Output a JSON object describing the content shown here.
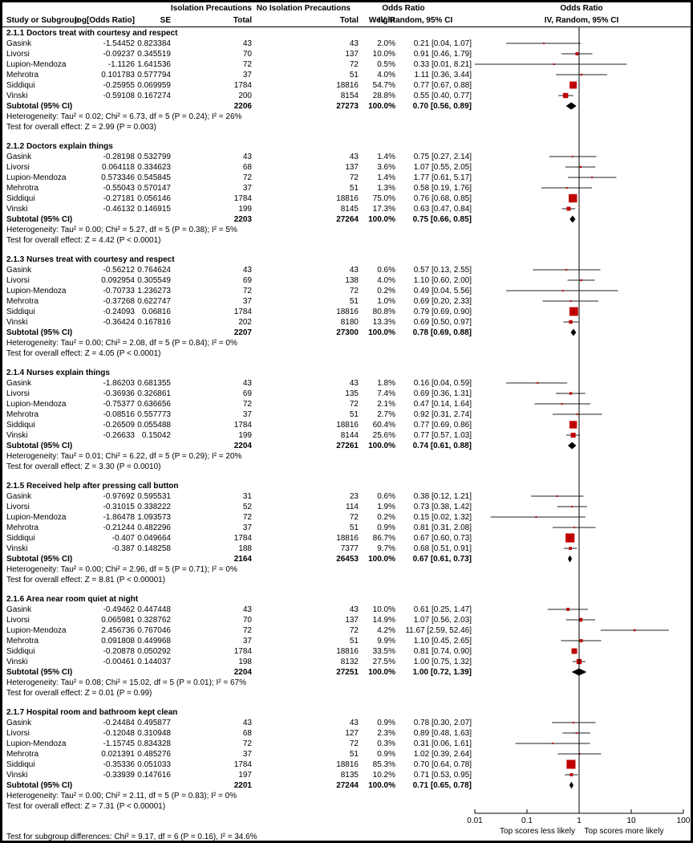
{
  "header": {
    "group_iso": "Isolation Precautions",
    "group_noiso": "No Isolation Precautions",
    "or_col_title": "Odds Ratio",
    "plot_col_title": "Odds Ratio",
    "study": "Study or Subgroup",
    "log_or": "log[Odds Ratio]",
    "se": "SE",
    "total_iso": "Total",
    "total_noiso": "Total",
    "weight": "Weight",
    "method_col": "IV, Random, 95% CI",
    "method_plot": "IV, Random, 95% CI"
  },
  "footer": "Test for subgroup differences: Chi² = 9.17, df = 6 (P = 0.16), I² = 34.6%",
  "colors": {
    "marker_red": "#c00000",
    "diamond_black": "#000000",
    "ci_line": "#4d4d4d",
    "axis_black": "#000000"
  },
  "chart_data": {
    "type": "forest_plot",
    "x_scale": "log10",
    "x_ticks": [
      "0.01",
      "0.1",
      "1",
      "10",
      "100"
    ],
    "x_tick_values": [
      0.01,
      0.1,
      1,
      10,
      100
    ],
    "axis_left_label": "Top scores less likely",
    "axis_right_label": "Top scores more likely",
    "subtotal_label": "Subtotal (95% CI)",
    "sections": [
      {
        "title": "2.1.1 Doctors treat with courtesy and respect",
        "studies": [
          {
            "name": "Gasink",
            "log_or": "-1.54452",
            "se": "0.823384",
            "iso": "43",
            "noiso": "43",
            "weight": "2.0%",
            "w": 2.0,
            "or_text": "0.21 [0.04, 1.07]",
            "or": 0.21,
            "lo": 0.04,
            "hi": 1.07
          },
          {
            "name": "Livorsi",
            "log_or": "-0.09237",
            "se": "0.345519",
            "iso": "70",
            "noiso": "137",
            "weight": "10.0%",
            "w": 10.0,
            "or_text": "0.91 [0.46, 1.79]",
            "or": 0.91,
            "lo": 0.46,
            "hi": 1.79
          },
          {
            "name": "Lupion-Mendoza",
            "log_or": "-1.1126",
            "se": "1.641536",
            "iso": "72",
            "noiso": "72",
            "weight": "0.5%",
            "w": 0.5,
            "or_text": "0.33 [0.01, 8.21]",
            "or": 0.33,
            "lo": 0.01,
            "hi": 8.21
          },
          {
            "name": "Mehrotra",
            "log_or": "0.101783",
            "se": "0.577794",
            "iso": "37",
            "noiso": "51",
            "weight": "4.0%",
            "w": 4.0,
            "or_text": "1.11 [0.36, 3.44]",
            "or": 1.11,
            "lo": 0.36,
            "hi": 3.44
          },
          {
            "name": "Siddiqui",
            "log_or": "-0.25955",
            "se": "0.069959",
            "iso": "1784",
            "noiso": "18816",
            "weight": "54.7%",
            "w": 54.7,
            "or_text": "0.77 [0.67, 0.88]",
            "or": 0.77,
            "lo": 0.67,
            "hi": 0.88
          },
          {
            "name": "Vinski",
            "log_or": "-0.59108",
            "se": "0.167274",
            "iso": "200",
            "noiso": "8154",
            "weight": "28.8%",
            "w": 28.8,
            "or_text": "0.55 [0.40, 0.77]",
            "or": 0.55,
            "lo": 0.4,
            "hi": 0.77
          }
        ],
        "subtotal": {
          "iso": "2206",
          "noiso": "27273",
          "weight": "100.0%",
          "or_text": "0.70 [0.56, 0.89]",
          "or": 0.7,
          "lo": 0.56,
          "hi": 0.89
        },
        "heterogeneity": "Heterogeneity: Tau² = 0.02; Chi² = 6.73, df = 5 (P = 0.24); I² = 26%",
        "overall": "Test for overall effect: Z = 2.99 (P = 0.003)"
      },
      {
        "title": "2.1.2 Doctors explain things",
        "studies": [
          {
            "name": "Gasink",
            "log_or": "-0.28198",
            "se": "0.532799",
            "iso": "43",
            "noiso": "43",
            "weight": "1.4%",
            "w": 1.4,
            "or_text": "0.75 [0.27, 2.14]",
            "or": 0.75,
            "lo": 0.27,
            "hi": 2.14
          },
          {
            "name": "Livorsi",
            "log_or": "0.064118",
            "se": "0.334623",
            "iso": "68",
            "noiso": "137",
            "weight": "3.6%",
            "w": 3.6,
            "or_text": "1.07 [0.55, 2.05]",
            "or": 1.07,
            "lo": 0.55,
            "hi": 2.05
          },
          {
            "name": "Lupion-Mendoza",
            "log_or": "0.573346",
            "se": "0.545845",
            "iso": "72",
            "noiso": "72",
            "weight": "1.4%",
            "w": 1.4,
            "or_text": "1.77 [0.61, 5.17]",
            "or": 1.77,
            "lo": 0.61,
            "hi": 5.17
          },
          {
            "name": "Mehrotra",
            "log_or": "-0.55043",
            "se": "0.570147",
            "iso": "37",
            "noiso": "51",
            "weight": "1.3%",
            "w": 1.3,
            "or_text": "0.58 [0.19, 1.76]",
            "or": 0.58,
            "lo": 0.19,
            "hi": 1.76
          },
          {
            "name": "Siddiqui",
            "log_or": "-0.27181",
            "se": "0.056146",
            "iso": "1784",
            "noiso": "18816",
            "weight": "75.0%",
            "w": 75.0,
            "or_text": "0.76 [0.68, 0.85]",
            "or": 0.76,
            "lo": 0.68,
            "hi": 0.85
          },
          {
            "name": "Vinski",
            "log_or": "-0.46132",
            "se": "0.146915",
            "iso": "199",
            "noiso": "8145",
            "weight": "17.3%",
            "w": 17.3,
            "or_text": "0.63 [0.47, 0.84]",
            "or": 0.63,
            "lo": 0.47,
            "hi": 0.84
          }
        ],
        "subtotal": {
          "iso": "2203",
          "noiso": "27264",
          "weight": "100.0%",
          "or_text": "0.75 [0.66, 0.85]",
          "or": 0.75,
          "lo": 0.66,
          "hi": 0.85
        },
        "heterogeneity": "Heterogeneity: Tau² = 0.00; Chi² = 5.27, df = 5 (P = 0.38); I² = 5%",
        "overall": "Test for overall effect: Z = 4.42 (P < 0.0001)"
      },
      {
        "title": "2.1.3 Nurses treat with courtesy and respect",
        "studies": [
          {
            "name": "Gasink",
            "log_or": "-0.56212",
            "se": "0.764624",
            "iso": "43",
            "noiso": "43",
            "weight": "0.6%",
            "w": 0.6,
            "or_text": "0.57 [0.13, 2.55]",
            "or": 0.57,
            "lo": 0.13,
            "hi": 2.55
          },
          {
            "name": "Livorsi",
            "log_or": "0.092954",
            "se": "0.305549",
            "iso": "69",
            "noiso": "138",
            "weight": "4.0%",
            "w": 4.0,
            "or_text": "1.10 [0.60, 2.00]",
            "or": 1.1,
            "lo": 0.6,
            "hi": 2.0
          },
          {
            "name": "Lupion-Mendoza",
            "log_or": "-0.70733",
            "se": "1.236273",
            "iso": "72",
            "noiso": "72",
            "weight": "0.2%",
            "w": 0.2,
            "or_text": "0.49 [0.04, 5.56]",
            "or": 0.49,
            "lo": 0.04,
            "hi": 5.56
          },
          {
            "name": "Mehrotra",
            "log_or": "-0.37268",
            "se": "0.622747",
            "iso": "37",
            "noiso": "51",
            "weight": "1.0%",
            "w": 1.0,
            "or_text": "0.69 [0.20, 2.33]",
            "or": 0.69,
            "lo": 0.2,
            "hi": 2.33
          },
          {
            "name": "Siddiqui",
            "log_or": "-0.24093",
            "se": "0.06816",
            "iso": "1784",
            "noiso": "18816",
            "weight": "80.8%",
            "w": 80.8,
            "or_text": "0.79 [0.69, 0.90]",
            "or": 0.79,
            "lo": 0.69,
            "hi": 0.9
          },
          {
            "name": "Vinski",
            "log_or": "-0.36424",
            "se": "0.167816",
            "iso": "202",
            "noiso": "8180",
            "weight": "13.3%",
            "w": 13.3,
            "or_text": "0.69 [0.50, 0.97]",
            "or": 0.69,
            "lo": 0.5,
            "hi": 0.97
          }
        ],
        "subtotal": {
          "iso": "2207",
          "noiso": "27300",
          "weight": "100.0%",
          "or_text": "0.78 [0.69, 0.88]",
          "or": 0.78,
          "lo": 0.69,
          "hi": 0.88
        },
        "heterogeneity": "Heterogeneity: Tau² = 0.00; Chi² = 2.08, df = 5 (P = 0.84); I² = 0%",
        "overall": "Test for overall effect: Z = 4.05 (P < 0.0001)"
      },
      {
        "title": "2.1.4 Nurses explain things",
        "studies": [
          {
            "name": "Gasink",
            "log_or": "-1.86203",
            "se": "0.681355",
            "iso": "43",
            "noiso": "43",
            "weight": "1.8%",
            "w": 1.8,
            "or_text": "0.16 [0.04, 0.59]",
            "or": 0.16,
            "lo": 0.04,
            "hi": 0.59
          },
          {
            "name": "Livorsi",
            "log_or": "-0.36936",
            "se": "0.326861",
            "iso": "69",
            "noiso": "135",
            "weight": "7.4%",
            "w": 7.4,
            "or_text": "0.69 [0.36, 1.31]",
            "or": 0.69,
            "lo": 0.36,
            "hi": 1.31
          },
          {
            "name": "Lupion-Mendoza",
            "log_or": "-0.75377",
            "se": "0.636656",
            "iso": "72",
            "noiso": "72",
            "weight": "2.1%",
            "w": 2.1,
            "or_text": "0.47 [0.14, 1.64]",
            "or": 0.47,
            "lo": 0.14,
            "hi": 1.64
          },
          {
            "name": "Mehrotra",
            "log_or": "-0.08516",
            "se": "0.557773",
            "iso": "37",
            "noiso": "51",
            "weight": "2.7%",
            "w": 2.7,
            "or_text": "0.92 [0.31, 2.74]",
            "or": 0.92,
            "lo": 0.31,
            "hi": 2.74
          },
          {
            "name": "Siddiqui",
            "log_or": "-0.26509",
            "se": "0.055488",
            "iso": "1784",
            "noiso": "18816",
            "weight": "60.4%",
            "w": 60.4,
            "or_text": "0.77 [0.69, 0.86]",
            "or": 0.77,
            "lo": 0.69,
            "hi": 0.86
          },
          {
            "name": "Vinski",
            "log_or": "-0.26633",
            "se": "0.15042",
            "iso": "199",
            "noiso": "8144",
            "weight": "25.6%",
            "w": 25.6,
            "or_text": "0.77 [0.57, 1.03]",
            "or": 0.77,
            "lo": 0.57,
            "hi": 1.03
          }
        ],
        "subtotal": {
          "iso": "2204",
          "noiso": "27261",
          "weight": "100.0%",
          "or_text": "0.74 [0.61, 0.88]",
          "or": 0.74,
          "lo": 0.61,
          "hi": 0.88
        },
        "heterogeneity": "Heterogeneity: Tau² = 0.01; Chi² = 6.22, df = 5 (P = 0.29); I² = 20%",
        "overall": "Test for overall effect: Z = 3.30 (P = 0.0010)"
      },
      {
        "title": "2.1.5 Received help after pressing call button",
        "studies": [
          {
            "name": "Gasink",
            "log_or": "-0.97692",
            "se": "0.595531",
            "iso": "31",
            "noiso": "23",
            "weight": "0.6%",
            "w": 0.6,
            "or_text": "0.38 [0.12, 1.21]",
            "or": 0.38,
            "lo": 0.12,
            "hi": 1.21
          },
          {
            "name": "Livorsi",
            "log_or": "-0.31015",
            "se": "0.338222",
            "iso": "52",
            "noiso": "114",
            "weight": "1.9%",
            "w": 1.9,
            "or_text": "0.73 [0.38, 1.42]",
            "or": 0.73,
            "lo": 0.38,
            "hi": 1.42
          },
          {
            "name": "Lupion-Mendoza",
            "log_or": "-1.86478",
            "se": "1.093573",
            "iso": "72",
            "noiso": "72",
            "weight": "0.2%",
            "w": 0.2,
            "or_text": "0.15 [0.02, 1.32]",
            "or": 0.15,
            "lo": 0.02,
            "hi": 1.32
          },
          {
            "name": "Mehrotra",
            "log_or": "-0.21244",
            "se": "0.482296",
            "iso": "37",
            "noiso": "51",
            "weight": "0.9%",
            "w": 0.9,
            "or_text": "0.81 [0.31, 2.08]",
            "or": 0.81,
            "lo": 0.31,
            "hi": 2.08
          },
          {
            "name": "Siddiqui",
            "log_or": "-0.407",
            "se": "0.049664",
            "iso": "1784",
            "noiso": "18816",
            "weight": "86.7%",
            "w": 86.7,
            "or_text": "0.67 [0.60, 0.73]",
            "or": 0.67,
            "lo": 0.6,
            "hi": 0.73
          },
          {
            "name": "Vinski",
            "log_or": "-0.387",
            "se": "0.148258",
            "iso": "188",
            "noiso": "7377",
            "weight": "9.7%",
            "w": 9.7,
            "or_text": "0.68 [0.51, 0.91]",
            "or": 0.68,
            "lo": 0.51,
            "hi": 0.91
          }
        ],
        "subtotal": {
          "iso": "2164",
          "noiso": "26453",
          "weight": "100.0%",
          "or_text": "0.67 [0.61, 0.73]",
          "or": 0.67,
          "lo": 0.61,
          "hi": 0.73
        },
        "heterogeneity": "Heterogeneity: Tau² = 0.00; Chi² = 2.96, df = 5 (P = 0.71); I² = 0%",
        "overall": "Test for overall effect: Z = 8.81 (P < 0.00001)"
      },
      {
        "title": "2.1.6 Area near room quiet at night",
        "studies": [
          {
            "name": "Gasink",
            "log_or": "-0.49462",
            "se": "0.447448",
            "iso": "43",
            "noiso": "43",
            "weight": "10.0%",
            "w": 10.0,
            "or_text": "0.61 [0.25, 1.47]",
            "or": 0.61,
            "lo": 0.25,
            "hi": 1.47
          },
          {
            "name": "Livorsi",
            "log_or": "0.065981",
            "se": "0.328762",
            "iso": "70",
            "noiso": "137",
            "weight": "14.9%",
            "w": 14.9,
            "or_text": "1.07 [0.56, 2.03]",
            "or": 1.07,
            "lo": 0.56,
            "hi": 2.03
          },
          {
            "name": "Lupion-Mendoza",
            "log_or": "2.456736",
            "se": "0.767046",
            "iso": "72",
            "noiso": "72",
            "weight": "4.2%",
            "w": 4.2,
            "or_text": "11.67 [2.59, 52.46]",
            "or": 11.67,
            "lo": 2.59,
            "hi": 52.46
          },
          {
            "name": "Mehrotra",
            "log_or": "0.091808",
            "se": "0.449968",
            "iso": "37",
            "noiso": "51",
            "weight": "9.9%",
            "w": 9.9,
            "or_text": "1.10 [0.45, 2.65]",
            "or": 1.1,
            "lo": 0.45,
            "hi": 2.65
          },
          {
            "name": "Siddiqui",
            "log_or": "-0.20878",
            "se": "0.050292",
            "iso": "1784",
            "noiso": "18816",
            "weight": "33.5%",
            "w": 33.5,
            "or_text": "0.81 [0.74, 0.90]",
            "or": 0.81,
            "lo": 0.74,
            "hi": 0.9
          },
          {
            "name": "Vinski",
            "log_or": "-0.00461",
            "se": "0.144037",
            "iso": "198",
            "noiso": "8132",
            "weight": "27.5%",
            "w": 27.5,
            "or_text": "1.00 [0.75, 1.32]",
            "or": 1.0,
            "lo": 0.75,
            "hi": 1.32
          }
        ],
        "subtotal": {
          "iso": "2204",
          "noiso": "27251",
          "weight": "100.0%",
          "or_text": "1.00 [0.72, 1.39]",
          "or": 1.0,
          "lo": 0.72,
          "hi": 1.39
        },
        "heterogeneity": "Heterogeneity: Tau² = 0.08; Chi² = 15.02, df = 5 (P = 0.01); I² = 67%",
        "overall": "Test for overall effect: Z = 0.01 (P = 0.99)"
      },
      {
        "title": "2.1.7 Hospital room and bathroom kept clean",
        "studies": [
          {
            "name": "Gasink",
            "log_or": "-0.24484",
            "se": "0.495877",
            "iso": "43",
            "noiso": "43",
            "weight": "0.9%",
            "w": 0.9,
            "or_text": "0.78 [0.30, 2.07]",
            "or": 0.78,
            "lo": 0.3,
            "hi": 2.07
          },
          {
            "name": "Livorsi",
            "log_or": "-0.12048",
            "se": "0.310948",
            "iso": "68",
            "noiso": "127",
            "weight": "2.3%",
            "w": 2.3,
            "or_text": "0.89 [0.48, 1.63]",
            "or": 0.89,
            "lo": 0.48,
            "hi": 1.63
          },
          {
            "name": "Lupion-Mendoza",
            "log_or": "-1.15745",
            "se": "0.834328",
            "iso": "72",
            "noiso": "72",
            "weight": "0.3%",
            "w": 0.3,
            "or_text": "0.31 [0.06, 1.61]",
            "or": 0.31,
            "lo": 0.06,
            "hi": 1.61
          },
          {
            "name": "Mehrotra",
            "log_or": "0.021391",
            "se": "0.485276",
            "iso": "37",
            "noiso": "51",
            "weight": "0.9%",
            "w": 0.9,
            "or_text": "1.02 [0.39, 2.64]",
            "or": 1.02,
            "lo": 0.39,
            "hi": 2.64
          },
          {
            "name": "Siddiqui",
            "log_or": "-0.35336",
            "se": "0.051033",
            "iso": "1784",
            "noiso": "18816",
            "weight": "85.3%",
            "w": 85.3,
            "or_text": "0.70 [0.64, 0.78]",
            "or": 0.7,
            "lo": 0.64,
            "hi": 0.78
          },
          {
            "name": "Vinski",
            "log_or": "-0.33939",
            "se": "0.147616",
            "iso": "197",
            "noiso": "8135",
            "weight": "10.2%",
            "w": 10.2,
            "or_text": "0.71 [0.53, 0.95]",
            "or": 0.71,
            "lo": 0.53,
            "hi": 0.95
          }
        ],
        "subtotal": {
          "iso": "2201",
          "noiso": "27244",
          "weight": "100.0%",
          "or_text": "0.71 [0.65, 0.78]",
          "or": 0.71,
          "lo": 0.65,
          "hi": 0.78
        },
        "heterogeneity": "Heterogeneity: Tau² = 0.00; Chi² = 2.11, df = 5 (P = 0.83); I² = 0%",
        "overall": "Test for overall effect: Z = 7.31 (P < 0.00001)"
      }
    ]
  }
}
